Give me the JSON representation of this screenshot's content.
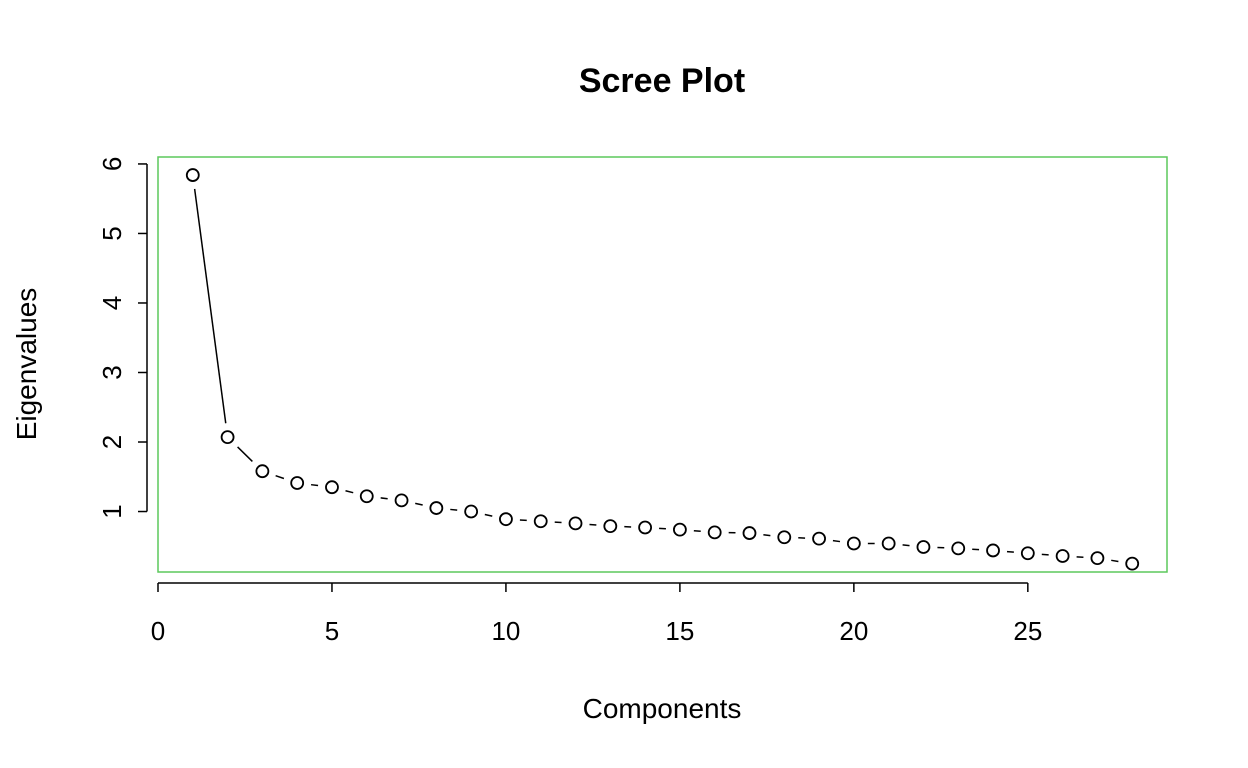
{
  "chart_data": {
    "type": "scatter",
    "title": "Scree Plot",
    "xlabel": "Components",
    "ylabel": "Eigenvalues",
    "xlim": [
      0,
      29
    ],
    "ylim": [
      0.13,
      6.1
    ],
    "xticks": [
      0,
      5,
      10,
      15,
      20,
      25
    ],
    "yticks": [
      1,
      2,
      3,
      4,
      5,
      6
    ],
    "grid": false,
    "legend": "none",
    "x": [
      1,
      2,
      3,
      4,
      5,
      6,
      7,
      8,
      9,
      10,
      11,
      12,
      13,
      14,
      15,
      16,
      17,
      18,
      19,
      20,
      21,
      22,
      23,
      24,
      25,
      26,
      27,
      28
    ],
    "values": [
      5.84,
      2.07,
      1.58,
      1.41,
      1.35,
      1.22,
      1.16,
      1.05,
      1.0,
      0.89,
      0.86,
      0.83,
      0.79,
      0.77,
      0.74,
      0.7,
      0.69,
      0.63,
      0.61,
      0.54,
      0.54,
      0.49,
      0.47,
      0.44,
      0.4,
      0.36,
      0.33,
      0.25
    ],
    "line_type": "overplotted",
    "colors": {
      "box": "#5cc85c",
      "points": "#000000",
      "axes": "#000000"
    }
  }
}
